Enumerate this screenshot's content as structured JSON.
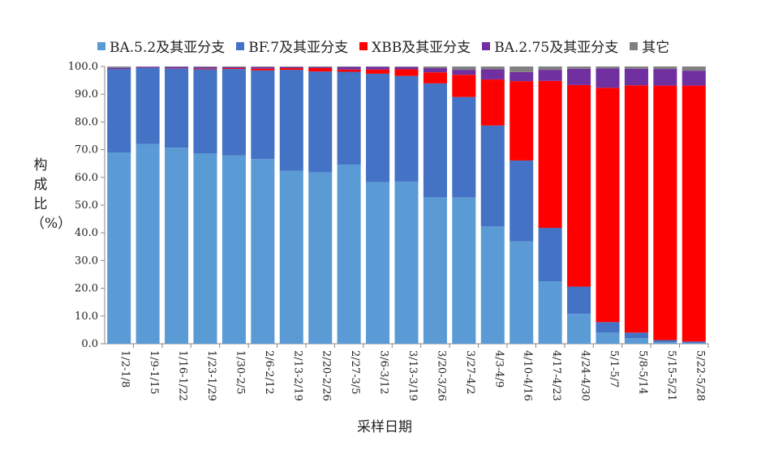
{
  "chart_data": {
    "type": "bar",
    "stacked": true,
    "xlabel": "采样日期",
    "ylabel": "构成比（%）",
    "ylim": [
      0,
      100
    ],
    "yticks": [
      "0.0",
      "10.0",
      "20.0",
      "30.0",
      "40.0",
      "50.0",
      "60.0",
      "70.0",
      "80.0",
      "90.0",
      "100.0"
    ],
    "legend_position": "top",
    "categories": [
      "1/2-1/8",
      "1/9-1/15",
      "1/16-1/22",
      "1/23-1/29",
      "1/30-2/5",
      "2/6-2/12",
      "2/13-2/19",
      "2/20-2/26",
      "2/27-3/5",
      "3/6-3/12",
      "3/13-3/19",
      "3/20-3/26",
      "3/27-4/2",
      "4/3-4/9",
      "4/10-4/16",
      "4/17-4/23",
      "4/24-4/30",
      "5/1-5/7",
      "5/8-5/14",
      "5/15-5/21",
      "5/22-5/28"
    ],
    "series": [
      {
        "name": "BA.5.2及其亚分支",
        "color": "#5B9BD5",
        "values": [
          69.0,
          72.0,
          70.7,
          68.6,
          67.9,
          66.6,
          62.4,
          61.8,
          64.6,
          58.3,
          58.5,
          52.8,
          52.8,
          42.3,
          36.9,
          22.5,
          10.8,
          4.0,
          2.0,
          0.5,
          0.3
        ]
      },
      {
        "name": "BF.7及其亚分支",
        "color": "#4472C4",
        "values": [
          30.0,
          27.5,
          28.6,
          30.4,
          31.2,
          32.0,
          36.4,
          36.4,
          33.5,
          39.1,
          38.1,
          41.1,
          36.2,
          36.4,
          29.2,
          19.3,
          9.8,
          3.8,
          2.0,
          0.8,
          0.5
        ]
      },
      {
        "name": "XBB及其亚分支",
        "color": "#FF0000",
        "values": [
          0.0,
          0.0,
          0.1,
          0.2,
          0.3,
          0.6,
          0.6,
          1.2,
          0.8,
          1.5,
          2.4,
          4.0,
          8.0,
          16.6,
          28.6,
          53.0,
          72.7,
          84.5,
          89.2,
          91.8,
          92.3
        ]
      },
      {
        "name": "BA.2.75及其亚分支",
        "color": "#7030A0",
        "values": [
          0.5,
          0.4,
          0.5,
          0.6,
          0.4,
          0.6,
          0.4,
          0.4,
          1.0,
          1.0,
          0.8,
          1.5,
          1.8,
          3.7,
          3.3,
          4.0,
          5.9,
          7.0,
          6.0,
          6.0,
          5.4
        ]
      },
      {
        "name": "其它",
        "color": "#808080",
        "values": [
          0.5,
          0.1,
          0.1,
          0.2,
          0.2,
          0.2,
          0.2,
          0.2,
          0.1,
          0.1,
          0.2,
          0.6,
          1.2,
          1.0,
          2.0,
          1.2,
          0.8,
          0.7,
          0.8,
          0.9,
          1.5
        ]
      }
    ]
  }
}
